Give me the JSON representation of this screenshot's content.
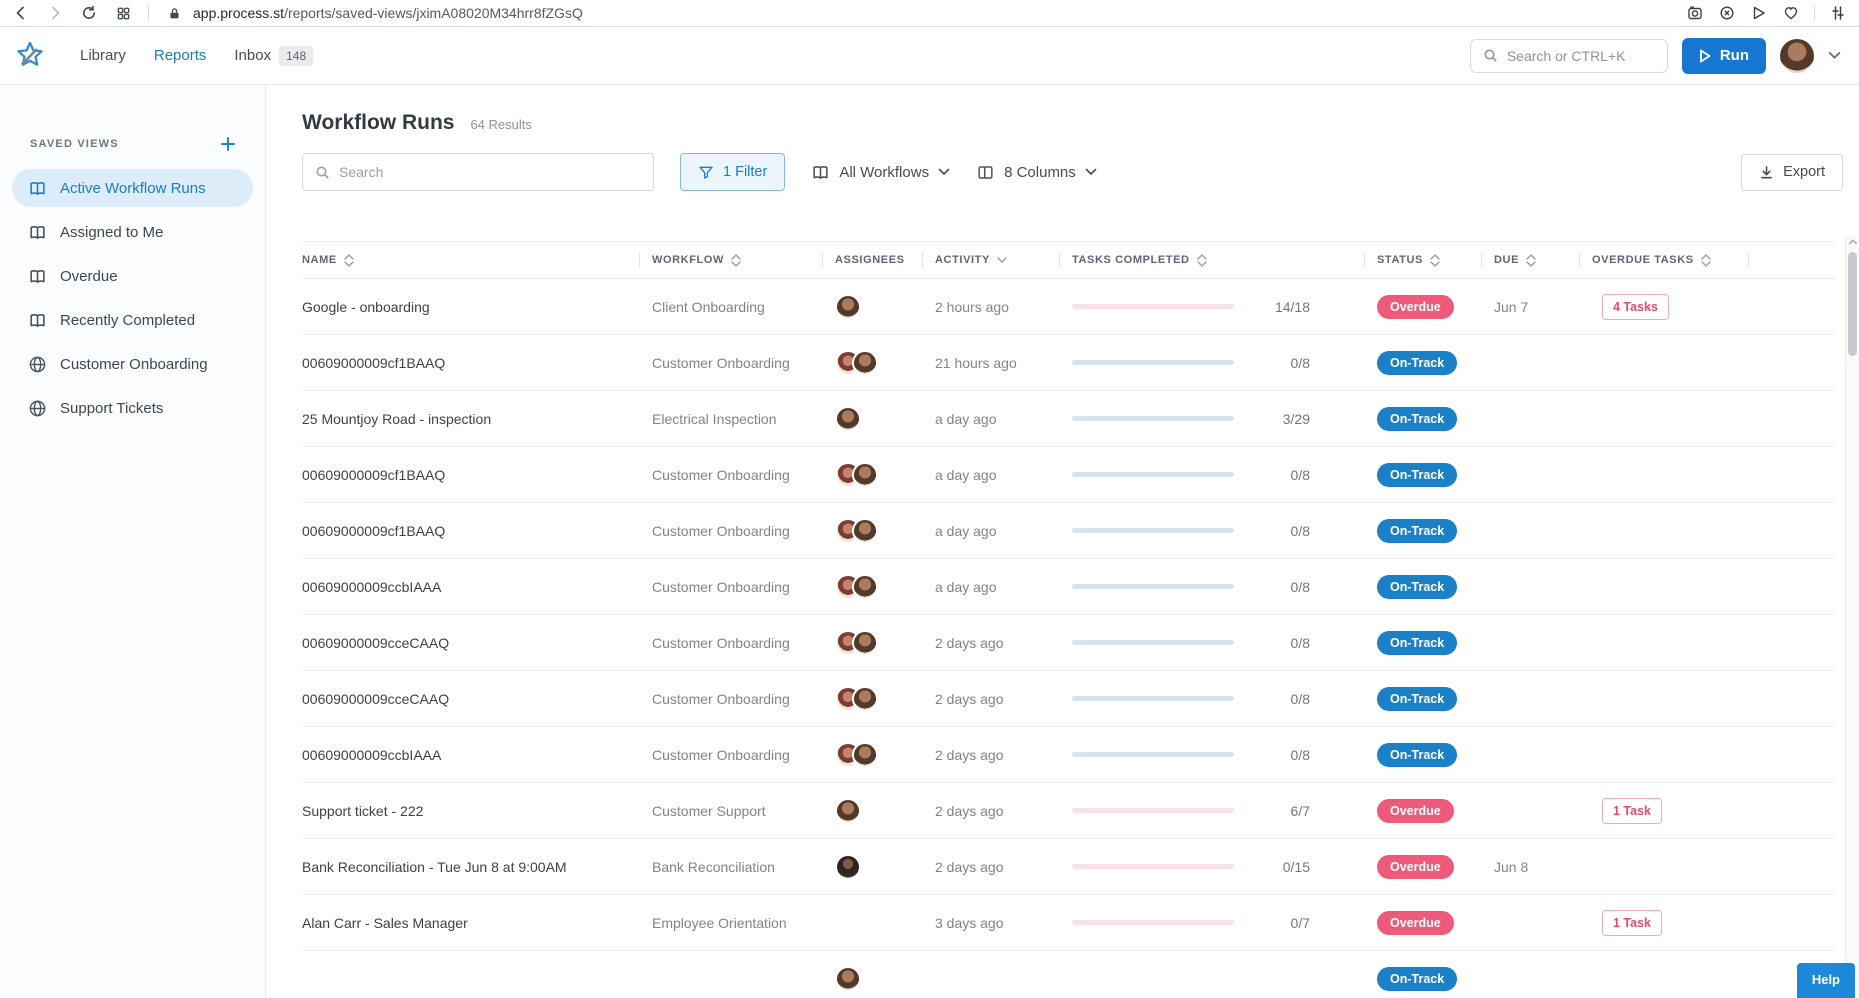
{
  "browser": {
    "url_domain": "app.process.st",
    "url_path": "/reports/saved-views/jximA08020M34hrr8fZGsQ"
  },
  "nav": {
    "items": [
      {
        "label": "Library",
        "active": false,
        "badge": ""
      },
      {
        "label": "Reports",
        "active": true,
        "badge": ""
      },
      {
        "label": "Inbox",
        "active": false,
        "badge": "148"
      }
    ],
    "search_placeholder": "Search or CTRL+K",
    "run_label": "Run"
  },
  "sidebar": {
    "title": "SAVED VIEWS",
    "items": [
      {
        "label": "Active Workflow Runs",
        "icon": "book",
        "active": true
      },
      {
        "label": "Assigned to Me",
        "icon": "book",
        "active": false
      },
      {
        "label": "Overdue",
        "icon": "book",
        "active": false
      },
      {
        "label": "Recently Completed",
        "icon": "book",
        "active": false
      },
      {
        "label": "Customer Onboarding",
        "icon": "globe",
        "active": false
      },
      {
        "label": "Support Tickets",
        "icon": "globe",
        "active": false
      }
    ]
  },
  "main": {
    "title": "Workflow Runs",
    "results": "64 Results",
    "toolbar": {
      "search_placeholder": "Search",
      "filter_label": "1 Filter",
      "workflows_label": "All Workflows",
      "columns_label": "8 Columns",
      "export_label": "Export"
    },
    "table": {
      "columns": [
        {
          "key": "name",
          "label": "NAME",
          "sort": "both"
        },
        {
          "key": "workflow",
          "label": "WORKFLOW",
          "sort": "both"
        },
        {
          "key": "assignees",
          "label": "ASSIGNEES",
          "sort": "none"
        },
        {
          "key": "activity",
          "label": "ACTIVITY",
          "sort": "desc"
        },
        {
          "key": "tasks",
          "label": "TASKS COMPLETED",
          "sort": "both"
        },
        {
          "key": "status",
          "label": "STATUS",
          "sort": "both"
        },
        {
          "key": "due",
          "label": "DUE",
          "sort": "both"
        },
        {
          "key": "overdue",
          "label": "OVERDUE TASKS",
          "sort": "both"
        }
      ],
      "rows": [
        {
          "name": "Google - onboarding",
          "workflow": "Client Onboarding",
          "avatars": [
            "a"
          ],
          "activity": "2 hours ago",
          "tasks": "14/18",
          "progress": 78,
          "status": "Overdue",
          "due": "Jun 7",
          "overdue_tasks": "4 Tasks"
        },
        {
          "name": "00609000009cf1BAAQ",
          "workflow": "Customer Onboarding",
          "avatars": [
            "b",
            "a"
          ],
          "activity": "21 hours ago",
          "tasks": "0/8",
          "progress": 0,
          "status": "On-Track",
          "due": "",
          "overdue_tasks": ""
        },
        {
          "name": "25 Mountjoy Road - inspection",
          "workflow": "Electrical Inspection",
          "avatars": [
            "a"
          ],
          "activity": "a day ago",
          "tasks": "3/29",
          "progress": 10,
          "status": "On-Track",
          "due": "",
          "overdue_tasks": ""
        },
        {
          "name": "00609000009cf1BAAQ",
          "workflow": "Customer Onboarding",
          "avatars": [
            "b",
            "a"
          ],
          "activity": "a day ago",
          "tasks": "0/8",
          "progress": 0,
          "status": "On-Track",
          "due": "",
          "overdue_tasks": ""
        },
        {
          "name": "00609000009cf1BAAQ",
          "workflow": "Customer Onboarding",
          "avatars": [
            "b",
            "a"
          ],
          "activity": "a day ago",
          "tasks": "0/8",
          "progress": 0,
          "status": "On-Track",
          "due": "",
          "overdue_tasks": ""
        },
        {
          "name": "00609000009ccbIAAA",
          "workflow": "Customer Onboarding",
          "avatars": [
            "b",
            "a"
          ],
          "activity": "a day ago",
          "tasks": "0/8",
          "progress": 0,
          "status": "On-Track",
          "due": "",
          "overdue_tasks": ""
        },
        {
          "name": "00609000009cceCAAQ",
          "workflow": "Customer Onboarding",
          "avatars": [
            "b",
            "a"
          ],
          "activity": "2 days ago",
          "tasks": "0/8",
          "progress": 0,
          "status": "On-Track",
          "due": "",
          "overdue_tasks": ""
        },
        {
          "name": "00609000009cceCAAQ",
          "workflow": "Customer Onboarding",
          "avatars": [
            "b",
            "a"
          ],
          "activity": "2 days ago",
          "tasks": "0/8",
          "progress": 0,
          "status": "On-Track",
          "due": "",
          "overdue_tasks": ""
        },
        {
          "name": "00609000009ccbIAAA",
          "workflow": "Customer Onboarding",
          "avatars": [
            "b",
            "a"
          ],
          "activity": "2 days ago",
          "tasks": "0/8",
          "progress": 0,
          "status": "On-Track",
          "due": "",
          "overdue_tasks": ""
        },
        {
          "name": "Support ticket - 222",
          "workflow": "Customer Support",
          "avatars": [
            "a"
          ],
          "activity": "2 days ago",
          "tasks": "6/7",
          "progress": 86,
          "status": "Overdue",
          "due": "",
          "overdue_tasks": "1 Task"
        },
        {
          "name": "Bank Reconciliation - Tue Jun 8 at 9:00AM",
          "workflow": "Bank Reconciliation",
          "avatars": [
            "c"
          ],
          "activity": "2 days ago",
          "tasks": "0/15",
          "progress": 0,
          "status": "Overdue",
          "due": "Jun 8",
          "overdue_tasks": ""
        },
        {
          "name": "Alan Carr - Sales Manager",
          "workflow": "Employee Orientation",
          "avatars": [],
          "activity": "3 days ago",
          "tasks": "0/7",
          "progress": 0,
          "status": "Overdue",
          "due": "",
          "overdue_tasks": "1 Task"
        },
        {
          "name": "",
          "workflow": "",
          "avatars": [
            "a"
          ],
          "activity": "",
          "tasks": "",
          "progress": 0,
          "status": "On-Track",
          "due": "",
          "overdue_tasks": "",
          "partial": true
        }
      ]
    },
    "help_label": "Help"
  },
  "colors": {
    "accent": "#1a7fc7",
    "run_button": "#1678d2",
    "status_overdue": "#ee5a7a",
    "status_on_track": "#1a80c8",
    "progress_fill_pink": "#ef6a8b",
    "progress_track_pink": "#f9e0e5",
    "progress_fill_blue": "#2a7fc0",
    "progress_track_blue": "#d4e3f1"
  }
}
